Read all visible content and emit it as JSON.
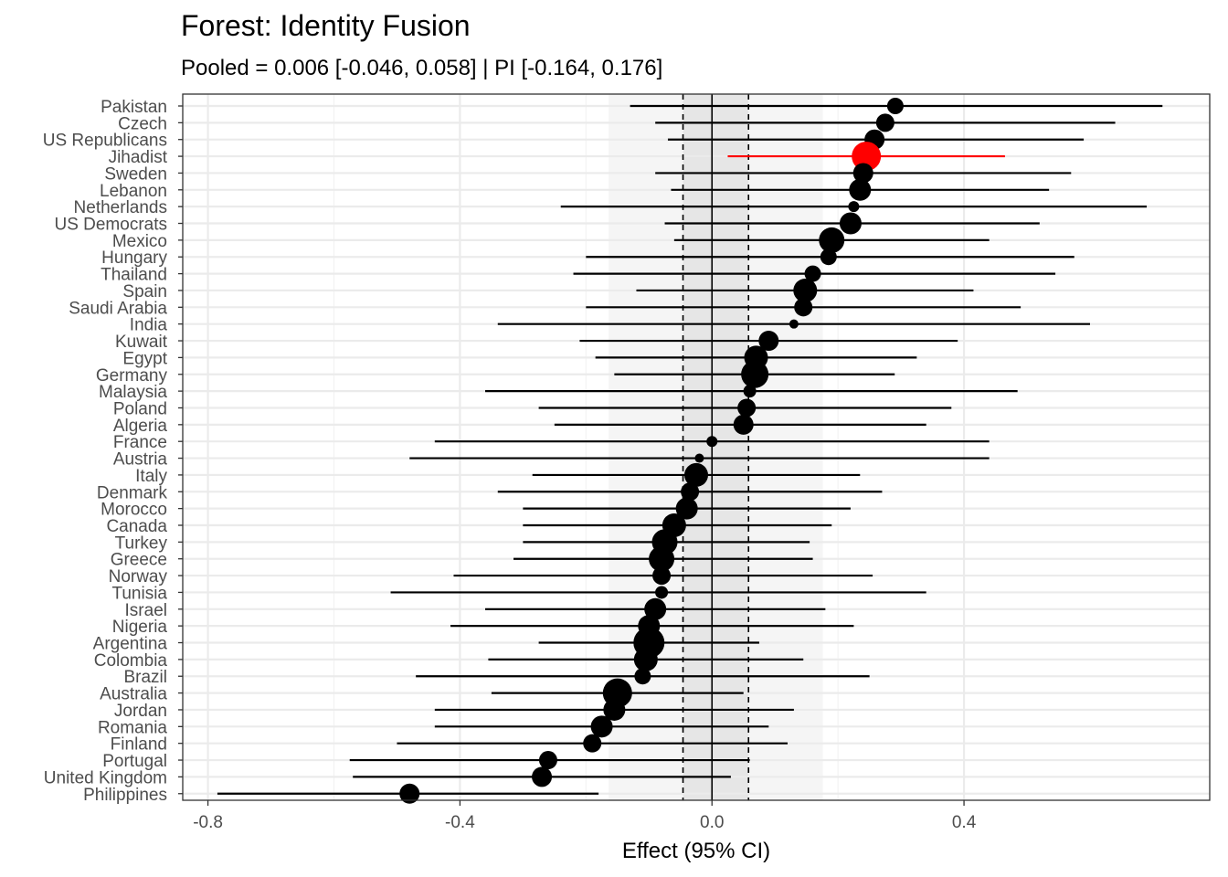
{
  "chart_data": {
    "type": "forest",
    "title": "Forest: Identity Fusion",
    "subtitle": "Pooled = 0.006 [-0.046, 0.058] | PI [-0.164, 0.176]",
    "xlabel": "Effect (95% CI)",
    "ylabel": "",
    "xlim": [
      -0.84,
      0.79
    ],
    "xticks": [
      -0.8,
      -0.4,
      0.0,
      0.4
    ],
    "xtick_labels": [
      "-0.8",
      "-0.4",
      "0.0",
      "0.4"
    ],
    "pooled": {
      "estimate": 0.006,
      "ci": [
        -0.046,
        0.058
      ],
      "pi": [
        -0.164,
        0.176
      ]
    },
    "highlight_color": "#ff0000",
    "point_color": "#000000",
    "grid": true,
    "rows": [
      {
        "label": "Pakistan",
        "est": 0.291,
        "lo": -0.13,
        "hi": 0.715,
        "size": 9
      },
      {
        "label": "Czech",
        "est": 0.275,
        "lo": -0.09,
        "hi": 0.64,
        "size": 10
      },
      {
        "label": "US Republicans",
        "est": 0.258,
        "lo": -0.07,
        "hi": 0.59,
        "size": 11
      },
      {
        "label": "Jihadist",
        "est": 0.245,
        "lo": 0.025,
        "hi": 0.465,
        "size": 16,
        "highlight": true
      },
      {
        "label": "Sweden",
        "est": 0.24,
        "lo": -0.09,
        "hi": 0.57,
        "size": 11
      },
      {
        "label": "Lebanon",
        "est": 0.235,
        "lo": -0.065,
        "hi": 0.535,
        "size": 12
      },
      {
        "label": "Netherlands",
        "est": 0.225,
        "lo": -0.24,
        "hi": 0.69,
        "size": 6
      },
      {
        "label": "US Democrats",
        "est": 0.22,
        "lo": -0.075,
        "hi": 0.52,
        "size": 12
      },
      {
        "label": "Mexico",
        "est": 0.19,
        "lo": -0.06,
        "hi": 0.44,
        "size": 14
      },
      {
        "label": "Hungary",
        "est": 0.185,
        "lo": -0.2,
        "hi": 0.575,
        "size": 9
      },
      {
        "label": "Thailand",
        "est": 0.16,
        "lo": -0.22,
        "hi": 0.545,
        "size": 9
      },
      {
        "label": "Spain",
        "est": 0.148,
        "lo": -0.12,
        "hi": 0.415,
        "size": 13
      },
      {
        "label": "Saudi Arabia",
        "est": 0.145,
        "lo": -0.2,
        "hi": 0.49,
        "size": 10
      },
      {
        "label": "India",
        "est": 0.13,
        "lo": -0.34,
        "hi": 0.6,
        "size": 5
      },
      {
        "label": "Kuwait",
        "est": 0.09,
        "lo": -0.21,
        "hi": 0.39,
        "size": 11
      },
      {
        "label": "Egypt",
        "est": 0.07,
        "lo": -0.185,
        "hi": 0.325,
        "size": 13
      },
      {
        "label": "Germany",
        "est": 0.068,
        "lo": -0.155,
        "hi": 0.29,
        "size": 15
      },
      {
        "label": "Malaysia",
        "est": 0.06,
        "lo": -0.36,
        "hi": 0.485,
        "size": 7
      },
      {
        "label": "Poland",
        "est": 0.055,
        "lo": -0.275,
        "hi": 0.38,
        "size": 10
      },
      {
        "label": "Algeria",
        "est": 0.05,
        "lo": -0.25,
        "hi": 0.34,
        "size": 11
      },
      {
        "label": "France",
        "est": 0.0,
        "lo": -0.44,
        "hi": 0.44,
        "size": 6
      },
      {
        "label": "Austria",
        "est": -0.02,
        "lo": -0.48,
        "hi": 0.44,
        "size": 5
      },
      {
        "label": "Italy",
        "est": -0.025,
        "lo": -0.285,
        "hi": 0.235,
        "size": 13
      },
      {
        "label": "Denmark",
        "est": -0.035,
        "lo": -0.34,
        "hi": 0.27,
        "size": 10
      },
      {
        "label": "Morocco",
        "est": -0.04,
        "lo": -0.3,
        "hi": 0.22,
        "size": 12
      },
      {
        "label": "Canada",
        "est": -0.06,
        "lo": -0.3,
        "hi": 0.19,
        "size": 13
      },
      {
        "label": "Turkey",
        "est": -0.075,
        "lo": -0.3,
        "hi": 0.155,
        "size": 14
      },
      {
        "label": "Greece",
        "est": -0.08,
        "lo": -0.315,
        "hi": 0.16,
        "size": 14
      },
      {
        "label": "Norway",
        "est": -0.08,
        "lo": -0.41,
        "hi": 0.255,
        "size": 10
      },
      {
        "label": "Tunisia",
        "est": -0.08,
        "lo": -0.51,
        "hi": 0.34,
        "size": 7
      },
      {
        "label": "Israel",
        "est": -0.09,
        "lo": -0.36,
        "hi": 0.18,
        "size": 12
      },
      {
        "label": "Nigeria",
        "est": -0.1,
        "lo": -0.415,
        "hi": 0.225,
        "size": 12
      },
      {
        "label": "Argentina",
        "est": -0.1,
        "lo": -0.275,
        "hi": 0.075,
        "size": 17
      },
      {
        "label": "Colombia",
        "est": -0.105,
        "lo": -0.355,
        "hi": 0.145,
        "size": 13
      },
      {
        "label": "Brazil",
        "est": -0.11,
        "lo": -0.47,
        "hi": 0.25,
        "size": 9
      },
      {
        "label": "Australia",
        "est": -0.15,
        "lo": -0.35,
        "hi": 0.05,
        "size": 16
      },
      {
        "label": "Jordan",
        "est": -0.155,
        "lo": -0.44,
        "hi": 0.13,
        "size": 12
      },
      {
        "label": "Romania",
        "est": -0.175,
        "lo": -0.44,
        "hi": 0.09,
        "size": 12
      },
      {
        "label": "Finland",
        "est": -0.19,
        "lo": -0.5,
        "hi": 0.12,
        "size": 10
      },
      {
        "label": "Portugal",
        "est": -0.26,
        "lo": -0.575,
        "hi": 0.06,
        "size": 10
      },
      {
        "label": "United Kingdom",
        "est": -0.27,
        "lo": -0.57,
        "hi": 0.03,
        "size": 11
      },
      {
        "label": "Philippines",
        "est": -0.48,
        "lo": -0.785,
        "hi": -0.18,
        "size": 11
      }
    ]
  }
}
